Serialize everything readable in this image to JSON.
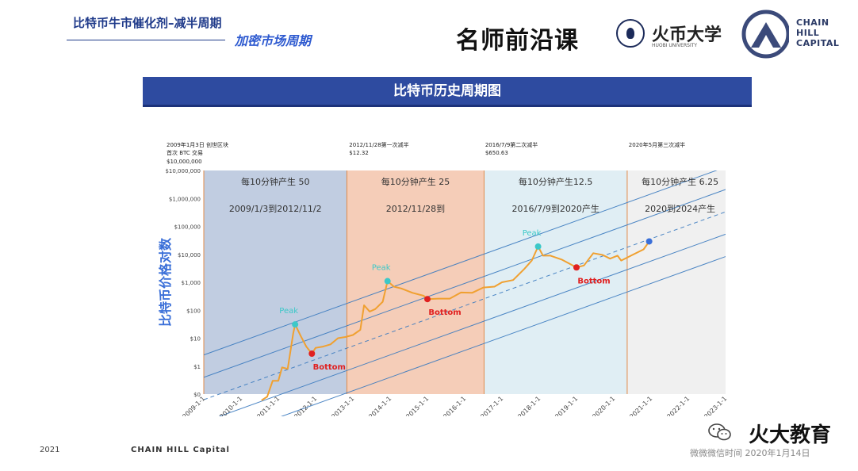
{
  "header": {
    "title_main": "比特币牛市催化剂–减半周期",
    "title_sub": "加密市场周期",
    "course_name": "名师前沿课",
    "university": "火币大学",
    "university_sub": "HUOBI UNIVERSITY",
    "brand_lines": [
      "CHAIN",
      "HILL",
      "CAPITAL"
    ]
  },
  "banner": {
    "title": "比特币历史周期图"
  },
  "colors": {
    "banner": "#2e4ba0",
    "price_line": "#f0a030",
    "peak": "#3cc8c8",
    "bottom": "#e02020",
    "current": "#3a6fd8",
    "band": "#3a7abf",
    "axis_text": "#3a6fd8"
  },
  "chart_data": {
    "type": "line",
    "ylabel": "比特币价格对数",
    "y_scale": "log",
    "y_ticks": [
      "$0",
      "$1",
      "$10",
      "$100",
      "$1,000",
      "$10,000",
      "$100,000",
      "$1,000,000",
      "$10,000,000"
    ],
    "x_ticks": [
      "2009-1-1",
      "2010-1-1",
      "2011-1-1",
      "2012-1-1",
      "2013-1-1",
      "2014-1-1",
      "2015-1-1",
      "2016-1-1",
      "2017-1-1",
      "2018-1-1",
      "2019-1-1",
      "2020-1-1",
      "2021-1-1",
      "2022-1-1",
      "2023-1-1"
    ],
    "eras": [
      {
        "reward": "每10分钟产生 50",
        "range": "2009/1/3到2012/11/2",
        "start": 2009.0,
        "end": 2012.84,
        "color": "#b7c6dd"
      },
      {
        "reward": "每10分钟产生 25",
        "range": "2012/11/28到",
        "start": 2012.84,
        "end": 2016.52,
        "color": "#f4c5ad"
      },
      {
        "reward": "每10分钟产生12.5",
        "range": "2016/7/9到2020产生",
        "start": 2016.52,
        "end": 2020.36,
        "color": "#dcecf3"
      },
      {
        "reward": "每10分钟产生 6.25",
        "range": "2020到2024产生",
        "start": 2020.36,
        "end": 2023.2,
        "color": "#eeeeee"
      }
    ],
    "top_annotations": [
      {
        "text": "2009年1月3日 创世区块",
        "x": 2009.0
      },
      {
        "text": "首次 BTC 交易",
        "x": 2009.0
      },
      {
        "text": "$10,000,000",
        "x": 2009.0
      },
      {
        "text": "2012/11/28第一次减半",
        "x": 2012.9
      },
      {
        "text": "$12.32",
        "x": 2012.9
      },
      {
        "text": "2016/7/9第二次减半",
        "x": 2016.55
      },
      {
        "text": "$650.63",
        "x": 2016.55
      },
      {
        "text": "2020年5月第三次减半",
        "x": 2020.4
      }
    ],
    "series": [
      {
        "x": [
          2010.55,
          2010.7,
          2010.85,
          2011.0,
          2011.1,
          2011.25,
          2011.4,
          2011.45,
          2011.6,
          2011.75,
          2011.9,
          2012.0,
          2012.2,
          2012.4,
          2012.6,
          2012.8,
          2013.0,
          2013.2,
          2013.3,
          2013.45,
          2013.6,
          2013.8,
          2013.93,
          2014.1,
          2014.3,
          2014.6,
          2014.9,
          2015.0,
          2015.3,
          2015.6,
          2015.9,
          2016.2,
          2016.5,
          2016.8,
          2017.0,
          2017.3,
          2017.6,
          2017.8,
          2017.97,
          2018.1,
          2018.3,
          2018.6,
          2018.9,
          2019.0,
          2019.2,
          2019.45,
          2019.7,
          2019.9,
          2020.1,
          2020.2,
          2020.5,
          2020.8,
          2020.95
        ],
        "y": [
          0.06,
          0.08,
          0.3,
          0.3,
          0.9,
          0.8,
          15,
          31,
          12,
          5,
          2.8,
          4.5,
          5,
          6,
          10,
          11,
          13,
          20,
          150,
          90,
          110,
          200,
          1100,
          700,
          600,
          420,
          330,
          250,
          260,
          260,
          430,
          420,
          650,
          700,
          1000,
          1200,
          3000,
          6000,
          19000,
          9000,
          9000,
          6500,
          4000,
          3400,
          4000,
          11000,
          9500,
          7000,
          9000,
          6000,
          9500,
          15000,
          29000
        ]
      }
    ],
    "peaks": [
      {
        "label": "Peak",
        "x": 2011.45,
        "y": 31
      },
      {
        "label": "Peak",
        "x": 2013.93,
        "y": 1100
      },
      {
        "label": "Peak",
        "x": 2017.97,
        "y": 19000
      }
    ],
    "bottoms": [
      {
        "label": "Bottom",
        "x": 2011.9,
        "y": 2.8
      },
      {
        "label": "Bottom",
        "x": 2015.0,
        "y": 250
      },
      {
        "label": "Bottom",
        "x": 2019.0,
        "y": 3400
      }
    ],
    "current": {
      "x": 2020.95,
      "y": 29000
    }
  },
  "footer": {
    "year": "2021",
    "brand": "CHAIN HILL Capital",
    "edu": "火大教育",
    "date": "微微微信时间 2020年1月14日"
  }
}
